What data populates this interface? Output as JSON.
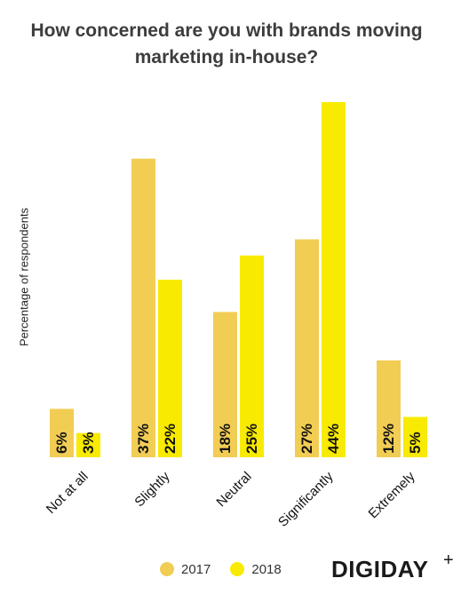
{
  "chart_data": {
    "type": "bar",
    "title_lines": [
      "How concerned are you with brands moving",
      "marketing in-house?"
    ],
    "ylabel": "Percentage of respondents",
    "xlabel": "",
    "categories": [
      "Not at all",
      "Slightly",
      "Neutral",
      "Significantly",
      "Extremely"
    ],
    "series": [
      {
        "name": "2017",
        "color": "#f2cd54",
        "values": [
          6,
          37,
          18,
          27,
          12
        ],
        "labels": [
          "6%",
          "37%",
          "18%",
          "27%",
          "12%"
        ]
      },
      {
        "name": "2018",
        "color": "#f8ea00",
        "values": [
          3,
          22,
          25,
          44,
          5
        ],
        "labels": [
          "3%",
          "22%",
          "25%",
          "44%",
          "5%"
        ]
      }
    ],
    "ylim": [
      0,
      45
    ],
    "grid": false,
    "legend_position": "bottom"
  },
  "brand": {
    "logo_text": "DIGIDAY",
    "logo_mark": "+"
  }
}
